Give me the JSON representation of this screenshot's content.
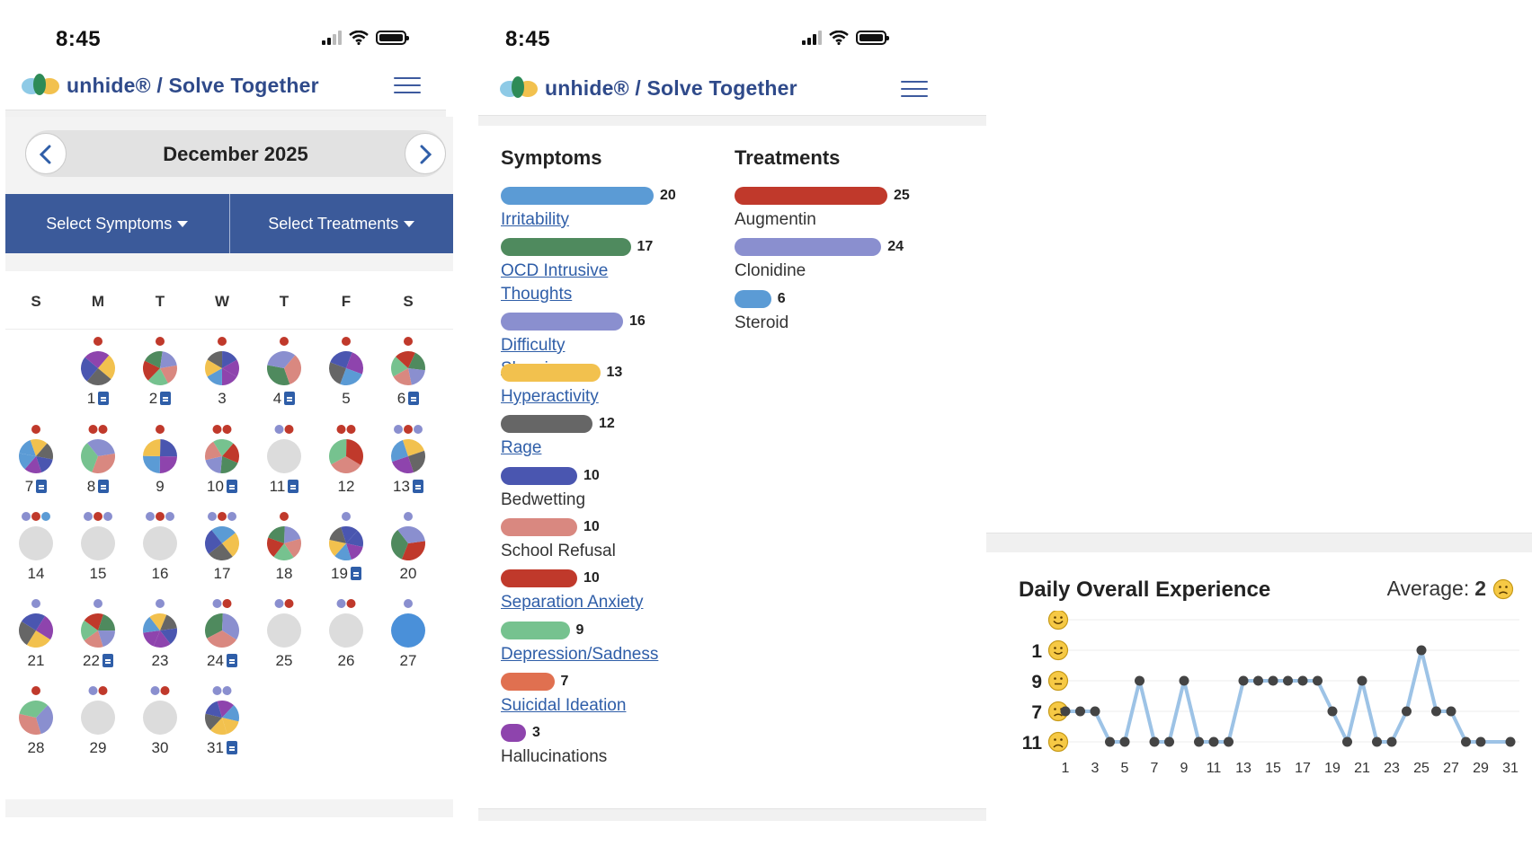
{
  "status_bar": {
    "time": "8:45"
  },
  "app": {
    "brand": "unhide® / Solve Together"
  },
  "calendar": {
    "month_label": "December 2025",
    "select_symptoms_label": "Select Symptoms",
    "select_treatments_label": "Select Treatments",
    "weekday_labels": [
      "S",
      "M",
      "T",
      "W",
      "T",
      "F",
      "S"
    ],
    "days": [
      {
        "label": "1",
        "note": true,
        "state": "pie",
        "dots": [
          "#c0392b"
        ]
      },
      {
        "label": "2",
        "note": true,
        "state": "pie",
        "dots": [
          "#c0392b"
        ]
      },
      {
        "label": "3",
        "note": false,
        "state": "pie",
        "dots": [
          "#c0392b"
        ]
      },
      {
        "label": "4",
        "note": true,
        "state": "pie",
        "dots": [
          "#c0392b"
        ]
      },
      {
        "label": "5",
        "note": false,
        "state": "pie",
        "dots": [
          "#c0392b"
        ]
      },
      {
        "label": "6",
        "note": true,
        "state": "pie",
        "dots": [
          "#c0392b"
        ]
      },
      {
        "label": "7",
        "note": true,
        "state": "pie",
        "dots": [
          "#c0392b"
        ]
      },
      {
        "label": "8",
        "note": true,
        "state": "pie",
        "dots": [
          "#c0392b",
          "#c0392b"
        ]
      },
      {
        "label": "9",
        "note": false,
        "state": "pie",
        "dots": [
          "#c0392b"
        ]
      },
      {
        "label": "10",
        "note": true,
        "state": "pie",
        "dots": [
          "#c0392b",
          "#c0392b"
        ]
      },
      {
        "label": "11",
        "note": true,
        "state": "empty",
        "dots": [
          "#8a8fcf",
          "#c0392b"
        ]
      },
      {
        "label": "12",
        "note": false,
        "state": "pie",
        "dots": [
          "#c0392b",
          "#c0392b"
        ]
      },
      {
        "label": "13",
        "note": true,
        "state": "pie",
        "dots": [
          "#8a8fcf",
          "#c0392b",
          "#8a8fcf"
        ]
      },
      {
        "label": "14",
        "note": false,
        "state": "empty",
        "dots": [
          "#8a8fcf",
          "#c0392b",
          "#5b9bd5"
        ]
      },
      {
        "label": "15",
        "note": false,
        "state": "empty",
        "dots": [
          "#8a8fcf",
          "#c0392b",
          "#8a8fcf"
        ]
      },
      {
        "label": "16",
        "note": false,
        "state": "empty",
        "dots": [
          "#8a8fcf",
          "#c0392b",
          "#8a8fcf"
        ]
      },
      {
        "label": "17",
        "note": false,
        "state": "pie",
        "dots": [
          "#8a8fcf",
          "#c0392b",
          "#8a8fcf"
        ]
      },
      {
        "label": "18",
        "note": false,
        "state": "pie",
        "dots": [
          "#c0392b"
        ]
      },
      {
        "label": "19",
        "note": true,
        "state": "pie",
        "dots": [
          "#8a8fcf"
        ]
      },
      {
        "label": "20",
        "note": false,
        "state": "pie",
        "dots": [
          "#8a8fcf"
        ]
      },
      {
        "label": "21",
        "note": false,
        "state": "pie",
        "dots": [
          "#8a8fcf"
        ]
      },
      {
        "label": "22",
        "note": true,
        "state": "pie",
        "dots": [
          "#8a8fcf"
        ]
      },
      {
        "label": "23",
        "note": false,
        "state": "pie",
        "dots": [
          "#8a8fcf"
        ]
      },
      {
        "label": "24",
        "note": true,
        "state": "pie",
        "dots": [
          "#8a8fcf",
          "#c0392b"
        ]
      },
      {
        "label": "25",
        "note": false,
        "state": "empty",
        "dots": [
          "#8a8fcf",
          "#c0392b"
        ]
      },
      {
        "label": "26",
        "note": false,
        "state": "empty",
        "dots": [
          "#8a8fcf",
          "#c0392b"
        ]
      },
      {
        "label": "27",
        "note": false,
        "state": "full",
        "dots": [
          "#8a8fcf"
        ]
      },
      {
        "label": "28",
        "note": false,
        "state": "pie",
        "dots": [
          "#c0392b"
        ]
      },
      {
        "label": "29",
        "note": false,
        "state": "empty",
        "dots": [
          "#8a8fcf",
          "#c0392b"
        ]
      },
      {
        "label": "30",
        "note": false,
        "state": "empty",
        "dots": [
          "#8a8fcf",
          "#c0392b"
        ]
      },
      {
        "label": "31",
        "note": true,
        "state": "pie",
        "dots": [
          "#8a8fcf",
          "#8a8fcf"
        ]
      }
    ]
  },
  "summary": {
    "symptoms_title": "Symptoms",
    "treatments_title": "Treatments",
    "symptoms": [
      {
        "name": "Irritability",
        "count": "20",
        "color": "#5b9bd5",
        "link": true
      },
      {
        "name": "OCD Intrusive Thoughts",
        "count": "17",
        "color": "#4f8a5e",
        "link": true
      },
      {
        "name": "Difficulty Sleeping",
        "count": "16",
        "color": "#8a8fcf",
        "link": true
      },
      {
        "name": "Hyperactivity",
        "count": "13",
        "color": "#f2c14e",
        "link": true
      },
      {
        "name": "Rage",
        "count": "12",
        "color": "#666666",
        "link": true
      },
      {
        "name": "Bedwetting",
        "count": "10",
        "color": "#4a56b0",
        "link": false
      },
      {
        "name": "School Refusal",
        "count": "10",
        "color": "#d98880",
        "link": false
      },
      {
        "name": "Separation Anxiety",
        "count": "10",
        "color": "#c0392b",
        "link": true
      },
      {
        "name": "Depression/Sadness",
        "count": "9",
        "color": "#76c28f",
        "link": true
      },
      {
        "name": "Suicidal Ideation",
        "count": "7",
        "color": "#e07050",
        "link": true
      },
      {
        "name": "Hallucinations",
        "count": "3",
        "color": "#8e44ad",
        "link": false
      }
    ],
    "treatments": [
      {
        "name": "Augmentin",
        "count": "25",
        "color": "#c0392b"
      },
      {
        "name": "Clonidine",
        "count": "24",
        "color": "#8a8fcf"
      },
      {
        "name": "Steroid",
        "count": "6",
        "color": "#5b9bd5"
      }
    ]
  },
  "experience": {
    "title": "Daily Overall Experience",
    "average_label": "Average:",
    "average_value": "2",
    "chart_data": {
      "type": "line",
      "title": "Daily Overall Experience",
      "x_tick_labels": [
        "1",
        "3",
        "5",
        "7",
        "9",
        "11",
        "13",
        "15",
        "17",
        "19",
        "21",
        "23",
        "25",
        "27",
        "29",
        "31"
      ],
      "y_tick_labels": [
        "",
        "1",
        "9",
        "7",
        "11"
      ],
      "y_icons": [
        "very-happy-face-icon",
        "happy-face-icon",
        "neutral-face-icon",
        "sad-face-icon",
        "very-sad-face-icon"
      ],
      "y_levels_top_to_bottom": 5,
      "series": [
        {
          "color": "#9dc3e6",
          "x": [
            1,
            2,
            3,
            4,
            5,
            6,
            7,
            8,
            9,
            10,
            11,
            12,
            13,
            14,
            15,
            16,
            17,
            18,
            19,
            20,
            21,
            22,
            23,
            24,
            25,
            26,
            27,
            28,
            29,
            31
          ],
          "level": [
            3,
            3,
            3,
            4,
            4,
            2,
            4,
            4,
            2,
            4,
            4,
            4,
            2,
            2,
            2,
            2,
            2,
            2,
            3,
            4,
            2,
            4,
            4,
            3,
            1,
            3,
            3,
            4,
            4,
            4
          ]
        }
      ]
    }
  }
}
